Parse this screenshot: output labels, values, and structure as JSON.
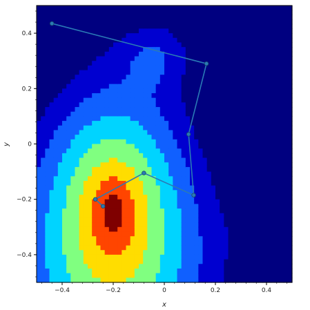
{
  "chart_data": {
    "type": "heatmap",
    "title": "",
    "xlabel": "x",
    "ylabel": "y",
    "xlim": [
      -0.5,
      0.5
    ],
    "ylim": [
      -0.5,
      0.5
    ],
    "x_ticks": [
      -0.4,
      -0.2,
      0,
      0.2,
      0.4
    ],
    "x_tick_labels": [
      "−0.4",
      "−0.2",
      "0",
      "0.2",
      "0.4"
    ],
    "y_ticks": [
      -0.4,
      -0.2,
      0,
      0.2,
      0.4
    ],
    "y_tick_labels": [
      "−0.4",
      "−0.2",
      "0",
      "0.2",
      "0.4"
    ],
    "grid": false,
    "legend": "none",
    "colormap": "jet (discrete levels)",
    "level_colors": [
      "#7f0000",
      "#ff4500",
      "#ffdd00",
      "#80ff80",
      "#00d4ff",
      "#1060ff",
      "#0000d0",
      "#000080"
    ],
    "path": {
      "color": "#2a7ab5",
      "points": [
        {
          "x": -0.44,
          "y": 0.435
        },
        {
          "x": 0.165,
          "y": 0.29
        },
        {
          "x": 0.095,
          "y": 0.035
        },
        {
          "x": 0.115,
          "y": -0.185
        },
        {
          "x": -0.08,
          "y": -0.105
        },
        {
          "x": -0.27,
          "y": -0.2
        },
        {
          "x": -0.24,
          "y": -0.225
        }
      ]
    }
  }
}
